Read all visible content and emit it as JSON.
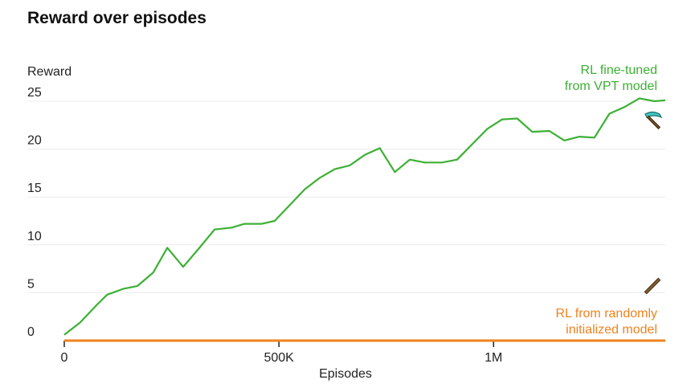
{
  "chart_data": {
    "type": "line",
    "title": "Reward over episodes",
    "xlabel": "Episodes",
    "ylabel": "Reward",
    "ylim": [
      0,
      25
    ],
    "xlim": [
      0,
      1400000
    ],
    "yticks": [
      {
        "value": 0,
        "label": "0"
      },
      {
        "value": 5,
        "label": "5"
      },
      {
        "value": 10,
        "label": "10"
      },
      {
        "value": 15,
        "label": "15"
      },
      {
        "value": 20,
        "label": "20"
      },
      {
        "value": 25,
        "label": "25"
      }
    ],
    "xticks": [
      {
        "value": 0,
        "label": "0"
      },
      {
        "value": 500000,
        "label": "500K"
      },
      {
        "value": 1000000,
        "label": "1M"
      }
    ],
    "grid": true,
    "series": [
      {
        "name_lines": [
          "RL fine-tuned",
          "from VPT model"
        ],
        "color": "#3cb034",
        "icon": "diamond-pickaxe-icon",
        "x": [
          0,
          37000,
          75000,
          100000,
          137000,
          170000,
          207000,
          240000,
          277000,
          315000,
          350000,
          390000,
          420000,
          460000,
          490000,
          520000,
          560000,
          595000,
          630000,
          665000,
          700000,
          735000,
          770000,
          805000,
          840000,
          880000,
          915000,
          950000,
          985000,
          1020000,
          1055000,
          1090000,
          1130000,
          1165000,
          1200000,
          1235000,
          1270000,
          1305000,
          1340000,
          1375000,
          1400000
        ],
        "y": [
          0.6,
          1.9,
          3.7,
          4.8,
          5.4,
          5.7,
          7.1,
          9.7,
          7.7,
          9.7,
          11.6,
          11.8,
          12.2,
          12.2,
          12.5,
          13.9,
          15.8,
          17.0,
          17.9,
          18.3,
          19.4,
          20.1,
          17.6,
          18.9,
          18.6,
          18.6,
          18.9,
          20.5,
          22.1,
          23.1,
          23.2,
          21.8,
          21.9,
          20.9,
          21.3,
          21.2,
          23.7,
          24.4,
          25.3,
          25.0,
          25.1
        ]
      },
      {
        "name_lines": [
          "RL from randomly",
          "initialized model"
        ],
        "color": "#f0821e",
        "icon": "wooden-pickaxe-icon",
        "x": [
          0,
          1400000
        ],
        "y": [
          0,
          0
        ]
      }
    ]
  }
}
